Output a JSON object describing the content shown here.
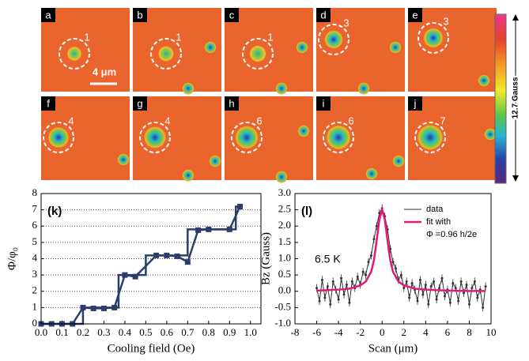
{
  "panels": {
    "letters": [
      "a",
      "b",
      "c",
      "d",
      "e",
      "f",
      "g",
      "h",
      "i",
      "j"
    ],
    "counts": [
      "1",
      "1",
      "1",
      "3",
      "3",
      "4",
      "4",
      "6",
      "6",
      "7"
    ],
    "scale_bar": "4 μm",
    "colorbar_label": "12.7 Gauss"
  },
  "chart_data": [
    {
      "type": "line",
      "annotation": "(k)",
      "xlabel": "Cooling field (Oe)",
      "ylabel": "Φ/φ₀",
      "xlim": [
        0,
        1.05
      ],
      "xticks": [
        {
          "value": 0,
          "label": "0.0"
        },
        0.1,
        0.2,
        0.3,
        0.4,
        0.5,
        0.6,
        0.7,
        0.8,
        0.9,
        {
          "value": 1,
          "label": "1.0"
        }
      ],
      "ylim": [
        0,
        8
      ],
      "yticks": [
        0,
        1,
        2,
        3,
        4,
        5,
        6,
        7,
        8
      ],
      "grid": true,
      "series": [
        {
          "color": "#2b3d6b",
          "marker": "none",
          "x": [
            0,
            0.2,
            0.2,
            0.37,
            0.37,
            0.5,
            0.5,
            0.7,
            0.7,
            0.93,
            0.93,
            0.95
          ],
          "values": [
            0,
            0,
            1,
            1,
            3,
            3,
            4.2,
            4.2,
            5.8,
            5.8,
            7.2,
            7.2
          ]
        },
        {
          "color": "#2b3d6b",
          "marker": "square",
          "x": [
            0,
            0.05,
            0.1,
            0.15,
            0.2,
            0.25,
            0.3,
            0.35,
            0.4,
            0.45,
            0.55,
            0.6,
            0.65,
            0.7,
            0.75,
            0.8,
            0.9,
            0.95
          ],
          "values": [
            0,
            0,
            0,
            0,
            1,
            0.95,
            0.95,
            1,
            3,
            2.9,
            4.2,
            4.2,
            4.15,
            3.8,
            5.75,
            5.8,
            5.8,
            7.2
          ]
        }
      ]
    },
    {
      "type": "line",
      "annotation": "(l)",
      "note": "6.5 K",
      "legend_extra": "Φ =0.96 h/2e",
      "xlabel": "Scan (μm)",
      "ylabel": "Bz (Gauss)",
      "xlim": [
        -8,
        10
      ],
      "xticks": [
        -8,
        -6,
        -4,
        -2,
        0,
        2,
        4,
        6,
        8,
        10
      ],
      "ylim": [
        -1,
        3
      ],
      "yticks": [
        {
          "value": -1,
          "label": "-1.0"
        },
        -0.5,
        {
          "value": 0,
          "label": "0.0"
        },
        0.5,
        {
          "value": 1,
          "label": "1.0"
        },
        1.5,
        {
          "value": 2,
          "label": "2.0"
        },
        2.5,
        {
          "value": 3,
          "label": "3.0"
        }
      ],
      "grid": false,
      "series": [
        {
          "name": "data",
          "color": "#333333",
          "marker": "dot",
          "x": [
            -6,
            -5.75,
            -5.5,
            -5.25,
            -5,
            -4.75,
            -4.5,
            -4.25,
            -4,
            -3.75,
            -3.5,
            -3.25,
            -3,
            -2.75,
            -2.5,
            -2.25,
            -2,
            -1.75,
            -1.5,
            -1.25,
            -1,
            -0.75,
            -0.5,
            -0.25,
            0,
            0.25,
            0.5,
            0.75,
            1,
            1.25,
            1.5,
            1.75,
            2,
            2.25,
            2.5,
            2.75,
            3,
            3.25,
            3.5,
            3.75,
            4,
            4.25,
            4.5,
            4.75,
            5,
            5.25,
            5.5,
            5.75,
            6,
            6.25,
            6.5,
            6.75,
            7,
            7.25,
            7.5,
            7.75,
            8,
            8.25,
            8.5,
            8.75,
            9,
            9.25,
            9.5
          ],
          "values": [
            0.1,
            -0.3,
            0.35,
            -0.2,
            0.15,
            -0.4,
            0.3,
            0.05,
            -0.25,
            0.4,
            -0.1,
            0.2,
            -0.35,
            0.3,
            0.1,
            0.45,
            0.2,
            0.6,
            0.5,
            0.9,
            1.1,
            1.6,
            2.0,
            2.4,
            2.55,
            2.3,
            1.9,
            1.3,
            0.9,
            0.7,
            0.35,
            0.5,
            0.1,
            0.3,
            -0.2,
            0.25,
            0.05,
            -0.3,
            0.35,
            -0.1,
            0.2,
            -0.4,
            0.15,
            0.3,
            -0.25,
            0.1,
            0.4,
            -0.15,
            0.05,
            -0.35,
            0.25,
            0.1,
            -0.3,
            0.3,
            -0.05,
            0.2,
            -0.4,
            0.1,
            0.3,
            -0.2,
            0.05,
            -0.5,
            0.15
          ]
        },
        {
          "name": "fit with",
          "color": "#e0197a",
          "marker": "none",
          "x": [
            -6,
            -4,
            -3,
            -2,
            -1.5,
            -1,
            -0.75,
            -0.5,
            -0.25,
            0,
            0.25,
            0.5,
            0.75,
            1,
            1.5,
            2,
            3,
            4,
            6,
            8,
            9.5
          ],
          "values": [
            0.02,
            0.05,
            0.08,
            0.18,
            0.3,
            0.6,
            0.95,
            1.55,
            2.2,
            2.5,
            2.2,
            1.55,
            0.95,
            0.6,
            0.3,
            0.18,
            0.08,
            0.05,
            0.02,
            0.01,
            0.01
          ]
        }
      ]
    }
  ]
}
